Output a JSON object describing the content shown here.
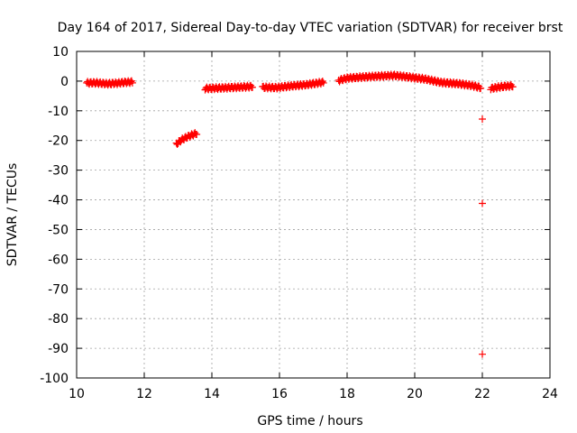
{
  "chart_data": {
    "type": "scatter",
    "title": "Day 164 of 2017, Sidereal Day-to-day VTEC variation (SDTVAR) for receiver brst",
    "xlabel": "GPS time / hours",
    "ylabel": "SDTVAR / TECUs",
    "xlim": [
      10,
      24
    ],
    "ylim": [
      -100,
      10
    ],
    "xticks": [
      10,
      12,
      14,
      16,
      18,
      20,
      22,
      24
    ],
    "yticks": [
      10,
      0,
      -10,
      -20,
      -30,
      -40,
      -50,
      -60,
      -70,
      -80,
      -90,
      -100
    ],
    "grid": true,
    "series": [
      {
        "name": "SDTVAR",
        "color": "#ff0000",
        "marker": "plus",
        "segments": [
          {
            "x_start": 10.3,
            "x_end": 11.65,
            "anchors": [
              [
                10.3,
                -0.6
              ],
              [
                10.6,
                -0.6
              ],
              [
                10.9,
                -0.9
              ],
              [
                11.2,
                -0.7
              ],
              [
                11.45,
                -0.4
              ],
              [
                11.65,
                -0.3
              ]
            ]
          },
          {
            "x_start": 12.95,
            "x_end": 13.55,
            "anchors": [
              [
                12.95,
                -21.2
              ],
              [
                13.1,
                -19.8
              ],
              [
                13.25,
                -18.9
              ],
              [
                13.4,
                -18.2
              ],
              [
                13.55,
                -17.6
              ]
            ]
          },
          {
            "x_start": 13.8,
            "x_end": 15.2,
            "anchors": [
              [
                13.8,
                -2.5
              ],
              [
                14.1,
                -2.4
              ],
              [
                14.5,
                -2.2
              ],
              [
                14.9,
                -2.0
              ],
              [
                15.2,
                -1.8
              ]
            ]
          },
          {
            "x_start": 15.5,
            "x_end": 17.3,
            "anchors": [
              [
                15.5,
                -2.1
              ],
              [
                15.9,
                -2.2
              ],
              [
                16.3,
                -1.7
              ],
              [
                16.8,
                -1.2
              ],
              [
                17.3,
                -0.4
              ]
            ]
          },
          {
            "x_start": 17.75,
            "x_end": 21.95,
            "anchors": [
              [
                17.75,
                0.2
              ],
              [
                18.0,
                1.0
              ],
              [
                18.5,
                1.4
              ],
              [
                19.0,
                1.7
              ],
              [
                19.4,
                1.9
              ],
              [
                19.8,
                1.4
              ],
              [
                20.3,
                0.7
              ],
              [
                20.8,
                -0.5
              ],
              [
                21.3,
                -0.9
              ],
              [
                21.7,
                -1.5
              ],
              [
                21.95,
                -2.2
              ]
            ]
          },
          {
            "x_start": 22.25,
            "x_end": 22.9,
            "anchors": [
              [
                22.25,
                -2.5
              ],
              [
                22.5,
                -2.0
              ],
              [
                22.7,
                -1.7
              ],
              [
                22.9,
                -1.6
              ]
            ]
          }
        ],
        "points": [
          {
            "x": 22.0,
            "y": -12.8
          },
          {
            "x": 22.0,
            "y": -41.2
          },
          {
            "x": 22.0,
            "y": -92.0
          }
        ]
      }
    ]
  }
}
